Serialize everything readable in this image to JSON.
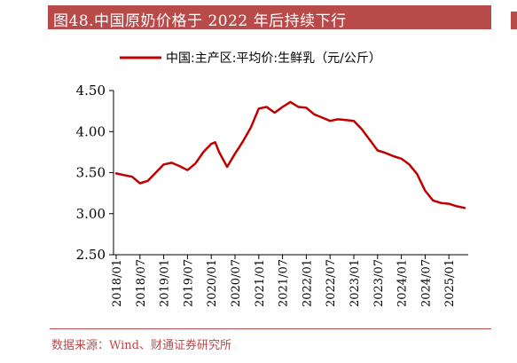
{
  "title": "图48.中国原奶价格于 2022 年后持续下行",
  "source": "数据来源：Wind、财通证券研究所",
  "colors": {
    "accent": "#b84a4a",
    "series": "#c00000"
  },
  "chart_data": {
    "type": "line",
    "legend": "top-center",
    "grid": false,
    "ylim": [
      2.5,
      4.5
    ],
    "yticks": [
      "2.50",
      "3.00",
      "3.50",
      "4.00",
      "4.50"
    ],
    "xticks": [
      "2018/01",
      "2018/07",
      "2019/01",
      "2019/07",
      "2020/01",
      "2020/07",
      "2021/01",
      "2021/07",
      "2022/01",
      "2022/07",
      "2023/01",
      "2023/07",
      "2024/01",
      "2024/07",
      "2025/01"
    ],
    "series": [
      {
        "name": "中国:主产区:平均价:生鲜乳（元/公斤）",
        "x": [
          "2018/01",
          "2018/03",
          "2018/05",
          "2018/07",
          "2018/09",
          "2018/11",
          "2019/01",
          "2019/03",
          "2019/05",
          "2019/07",
          "2019/09",
          "2019/11",
          "2020/01",
          "2020/02",
          "2020/03",
          "2020/05",
          "2020/07",
          "2020/09",
          "2020/11",
          "2021/01",
          "2021/03",
          "2021/05",
          "2021/07",
          "2021/09",
          "2021/11",
          "2022/01",
          "2022/03",
          "2022/05",
          "2022/07",
          "2022/09",
          "2022/11",
          "2023/01",
          "2023/03",
          "2023/05",
          "2023/07",
          "2023/09",
          "2023/11",
          "2024/01",
          "2024/03",
          "2024/05",
          "2024/07",
          "2024/09",
          "2024/11",
          "2025/01",
          "2025/03",
          "2025/05"
        ],
        "values": [
          3.49,
          3.47,
          3.45,
          3.37,
          3.4,
          3.5,
          3.6,
          3.62,
          3.58,
          3.53,
          3.61,
          3.75,
          3.85,
          3.87,
          3.75,
          3.57,
          3.73,
          3.88,
          4.05,
          4.28,
          4.3,
          4.23,
          4.3,
          4.36,
          4.3,
          4.29,
          4.21,
          4.17,
          4.13,
          4.15,
          4.14,
          4.13,
          4.03,
          3.9,
          3.77,
          3.74,
          3.7,
          3.67,
          3.6,
          3.48,
          3.28,
          3.16,
          3.13,
          3.12,
          3.09,
          3.07
        ]
      }
    ]
  }
}
